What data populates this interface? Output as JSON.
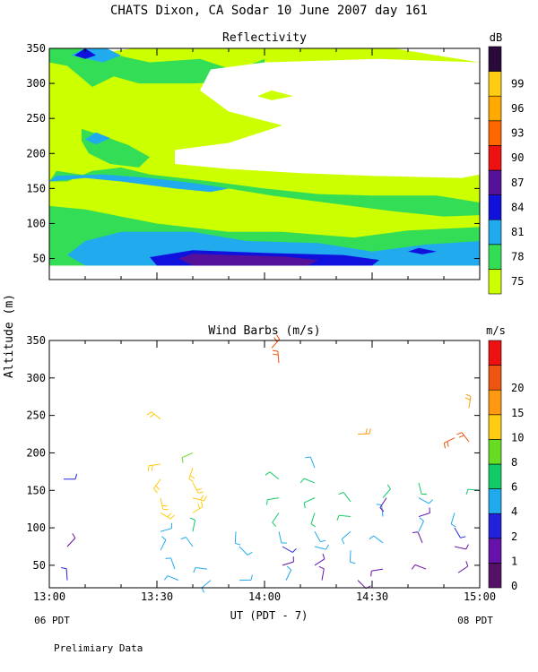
{
  "header": {
    "title": "CHATS Dixon, CA  Sodar  10 June 2007  day 161",
    "y_axis_label": "Altitude (m)",
    "x_axis_label": "UT  (PDT - 7)",
    "left_local_time": "06 PDT",
    "right_local_time": "08 PDT",
    "footnote": "Prelimiary Data"
  },
  "colors": {
    "background": "#ffffff",
    "axis": "#000000"
  },
  "chart_data": [
    {
      "type": "heatmap",
      "title": "Reflectivity",
      "colorbar_unit": "dB",
      "x_ticks": [
        "13:00",
        "13:30",
        "14:00",
        "14:30",
        "15:00"
      ],
      "y_ticks": [
        "50",
        "100",
        "150",
        "200",
        "250",
        "300",
        "350"
      ],
      "xlim_minutes": [
        780,
        900
      ],
      "ylim": [
        20,
        350
      ],
      "grid": false,
      "levels": [
        {
          "label": "75",
          "color": "#ccff00"
        },
        {
          "label": "78",
          "color": "#33dd55"
        },
        {
          "label": "81",
          "color": "#22aaee"
        },
        {
          "label": "84",
          "color": "#1111dd"
        },
        {
          "label": "87",
          "color": "#551199"
        },
        {
          "label": "90",
          "color": "#ee1111"
        },
        {
          "label": "93",
          "color": "#ff6600"
        },
        {
          "label": "96",
          "color": "#ffaa00"
        },
        {
          "label": "99",
          "color": "#ffcc11"
        },
        {
          "label": "",
          "color": "#2a0a3a"
        }
      ],
      "regions": [
        {
          "level": 0,
          "points": [
            [
              780,
              40
            ],
            [
              900,
              40
            ],
            [
              900,
              330
            ],
            [
              876,
              350
            ],
            [
              804,
              350
            ],
            [
              780,
              335
            ]
          ]
        },
        {
          "level": 1,
          "points": [
            [
              780,
              40
            ],
            [
              900,
              40
            ],
            [
              900,
              95
            ],
            [
              880,
              90
            ],
            [
              865,
              80
            ],
            [
              845,
              88
            ],
            [
              830,
              88
            ],
            [
              810,
              100
            ],
            [
              790,
              120
            ],
            [
              780,
              125
            ]
          ]
        },
        {
          "level": 1,
          "points": [
            [
              780,
              160
            ],
            [
              782,
              175
            ],
            [
              795,
              165
            ],
            [
              815,
              160
            ],
            [
              830,
              150
            ],
            [
              842,
              140
            ],
            [
              860,
              128
            ],
            [
              875,
              118
            ],
            [
              890,
              110
            ],
            [
              900,
              112
            ],
            [
              900,
              130
            ],
            [
              888,
              140
            ],
            [
              870,
              140
            ],
            [
              855,
              142
            ],
            [
              840,
              150
            ],
            [
              825,
              160
            ],
            [
              808,
              170
            ],
            [
              800,
              180
            ],
            [
              792,
              175
            ],
            [
              785,
              160
            ]
          ]
        },
        {
          "level": 1,
          "points": [
            [
              780,
              350
            ],
            [
              790,
              350
            ],
            [
              808,
              330
            ],
            [
              822,
              335
            ],
            [
              832,
              318
            ],
            [
              840,
              335
            ],
            [
              840,
              320
            ],
            [
              832,
              302
            ],
            [
              820,
              300
            ],
            [
              805,
              300
            ],
            [
              798,
              310
            ],
            [
              792,
              295
            ],
            [
              785,
              325
            ],
            [
              780,
              330
            ]
          ]
        },
        {
          "level": 1,
          "points": [
            [
              789,
              235
            ],
            [
              795,
              225
            ],
            [
              802,
              212
            ],
            [
              808,
              195
            ],
            [
              805,
              180
            ],
            [
              797,
              185
            ],
            [
              791,
              200
            ],
            [
              789,
              218
            ]
          ]
        },
        {
          "level": 2,
          "points": [
            [
              790,
              40
            ],
            [
              900,
              40
            ],
            [
              900,
              75
            ],
            [
              885,
              70
            ],
            [
              870,
              60
            ],
            [
              855,
              72
            ],
            [
              835,
              75
            ],
            [
              820,
              88
            ],
            [
              800,
              88
            ],
            [
              790,
              75
            ],
            [
              785,
              55
            ]
          ]
        },
        {
          "level": 2,
          "points": [
            [
              780,
              160
            ],
            [
              790,
              165
            ],
            [
              800,
              160
            ],
            [
              815,
              150
            ],
            [
              825,
              145
            ],
            [
              830,
              150
            ],
            [
              820,
              158
            ],
            [
              808,
              165
            ],
            [
              795,
              170
            ],
            [
              782,
              168
            ]
          ]
        },
        {
          "level": 2,
          "points": [
            [
              786,
              340
            ],
            [
              790,
              350
            ],
            [
              796,
              350
            ],
            [
              800,
              340
            ],
            [
              795,
              330
            ]
          ]
        },
        {
          "level": 2,
          "points": [
            [
              790,
              220
            ],
            [
              793,
              230
            ],
            [
              797,
              222
            ],
            [
              793,
              213
            ]
          ]
        },
        {
          "level": 3,
          "points": [
            [
              810,
              40
            ],
            [
              870,
              40
            ],
            [
              872,
              48
            ],
            [
              862,
              55
            ],
            [
              840,
              58
            ],
            [
              820,
              62
            ],
            [
              808,
              52
            ]
          ]
        },
        {
          "level": 3,
          "points": [
            [
              787,
              340
            ],
            [
              790,
              350
            ],
            [
              793,
              340
            ],
            [
              790,
              335
            ]
          ]
        },
        {
          "level": 4,
          "points": [
            [
              816,
              50
            ],
            [
              820,
              40
            ],
            [
              852,
              40
            ],
            [
              855,
              48
            ],
            [
              845,
              53
            ],
            [
              830,
              55
            ],
            [
              820,
              57
            ]
          ]
        },
        {
          "level": 3,
          "points": [
            [
              880,
              60
            ],
            [
              883,
              65
            ],
            [
              888,
              60
            ],
            [
              884,
              56
            ]
          ]
        }
      ]
    },
    {
      "type": "scatter",
      "title": "Wind Barbs (m/s)",
      "colorbar_unit": "m/s",
      "x_ticks": [
        "13:00",
        "13:30",
        "14:00",
        "14:30",
        "15:00"
      ],
      "y_ticks": [
        "50",
        "100",
        "150",
        "200",
        "250",
        "300",
        "350"
      ],
      "xlim_minutes": [
        780,
        900
      ],
      "ylim": [
        20,
        350
      ],
      "grid": false,
      "levels": [
        {
          "label": "0",
          "color": "#551166"
        },
        {
          "label": "1",
          "color": "#6611aa"
        },
        {
          "label": "2",
          "color": "#2222dd"
        },
        {
          "label": "4",
          "color": "#22aaee"
        },
        {
          "label": "6",
          "color": "#11cc66"
        },
        {
          "label": "8",
          "color": "#66dd22"
        },
        {
          "label": "10",
          "color": "#ffcc11"
        },
        {
          "label": "15",
          "color": "#ff9911"
        },
        {
          "label": "20",
          "color": "#ee5511"
        },
        {
          "label": "",
          "color": "#ee1111"
        }
      ],
      "points": [
        {
          "t": 784,
          "alt": 165,
          "level": 2
        },
        {
          "t": 785,
          "alt": 75,
          "level": 1
        },
        {
          "t": 785,
          "alt": 30,
          "level": 2
        },
        {
          "t": 811,
          "alt": 245,
          "level": 6
        },
        {
          "t": 811,
          "alt": 185,
          "level": 6
        },
        {
          "t": 811,
          "alt": 165,
          "level": 6
        },
        {
          "t": 811,
          "alt": 140,
          "level": 6
        },
        {
          "t": 811,
          "alt": 120,
          "level": 6
        },
        {
          "t": 811,
          "alt": 95,
          "level": 3
        },
        {
          "t": 811,
          "alt": 70,
          "level": 3
        },
        {
          "t": 815,
          "alt": 45,
          "level": 3
        },
        {
          "t": 816,
          "alt": 30,
          "level": 3
        },
        {
          "t": 820,
          "alt": 200,
          "level": 5
        },
        {
          "t": 820,
          "alt": 180,
          "level": 6
        },
        {
          "t": 820,
          "alt": 160,
          "level": 6
        },
        {
          "t": 820,
          "alt": 140,
          "level": 6
        },
        {
          "t": 820,
          "alt": 120,
          "level": 6
        },
        {
          "t": 820,
          "alt": 95,
          "level": 4
        },
        {
          "t": 820,
          "alt": 75,
          "level": 3
        },
        {
          "t": 824,
          "alt": 45,
          "level": 3
        },
        {
          "t": 825,
          "alt": 30,
          "level": 3
        },
        {
          "t": 832,
          "alt": 95,
          "level": 3
        },
        {
          "t": 833,
          "alt": 75,
          "level": 3
        },
        {
          "t": 833,
          "alt": 30,
          "level": 3
        },
        {
          "t": 842,
          "alt": 340,
          "level": 8
        },
        {
          "t": 844,
          "alt": 320,
          "level": 8
        },
        {
          "t": 844,
          "alt": 165,
          "level": 4
        },
        {
          "t": 844,
          "alt": 140,
          "level": 4
        },
        {
          "t": 844,
          "alt": 120,
          "level": 4
        },
        {
          "t": 844,
          "alt": 95,
          "level": 3
        },
        {
          "t": 845,
          "alt": 75,
          "level": 2
        },
        {
          "t": 845,
          "alt": 50,
          "level": 1
        },
        {
          "t": 846,
          "alt": 30,
          "level": 3
        },
        {
          "t": 854,
          "alt": 180,
          "level": 3
        },
        {
          "t": 854,
          "alt": 160,
          "level": 4
        },
        {
          "t": 854,
          "alt": 140,
          "level": 4
        },
        {
          "t": 854,
          "alt": 120,
          "level": 4
        },
        {
          "t": 854,
          "alt": 95,
          "level": 3
        },
        {
          "t": 854,
          "alt": 75,
          "level": 3
        },
        {
          "t": 854,
          "alt": 50,
          "level": 1
        },
        {
          "t": 856,
          "alt": 30,
          "level": 1
        },
        {
          "t": 864,
          "alt": 135,
          "level": 4
        },
        {
          "t": 864,
          "alt": 115,
          "level": 4
        },
        {
          "t": 864,
          "alt": 95,
          "level": 3
        },
        {
          "t": 864,
          "alt": 70,
          "level": 3
        },
        {
          "t": 866,
          "alt": 30,
          "level": 1
        },
        {
          "t": 866,
          "alt": 225,
          "level": 7
        },
        {
          "t": 873,
          "alt": 140,
          "level": 4
        },
        {
          "t": 873,
          "alt": 115,
          "level": 3
        },
        {
          "t": 873,
          "alt": 80,
          "level": 3
        },
        {
          "t": 873,
          "alt": 45,
          "level": 1
        },
        {
          "t": 874,
          "alt": 140,
          "level": 1
        },
        {
          "t": 883,
          "alt": 160,
          "level": 4
        },
        {
          "t": 883,
          "alt": 140,
          "level": 3
        },
        {
          "t": 883,
          "alt": 115,
          "level": 1
        },
        {
          "t": 883,
          "alt": 95,
          "level": 3
        },
        {
          "t": 884,
          "alt": 80,
          "level": 1
        },
        {
          "t": 885,
          "alt": 45,
          "level": 1
        },
        {
          "t": 893,
          "alt": 220,
          "level": 8
        },
        {
          "t": 893,
          "alt": 120,
          "level": 3
        },
        {
          "t": 893,
          "alt": 100,
          "level": 2
        },
        {
          "t": 893,
          "alt": 75,
          "level": 1
        },
        {
          "t": 894,
          "alt": 40,
          "level": 1
        },
        {
          "t": 897,
          "alt": 260,
          "level": 7
        },
        {
          "t": 897,
          "alt": 215,
          "level": 8
        },
        {
          "t": 900,
          "alt": 150,
          "level": 4
        }
      ]
    }
  ]
}
